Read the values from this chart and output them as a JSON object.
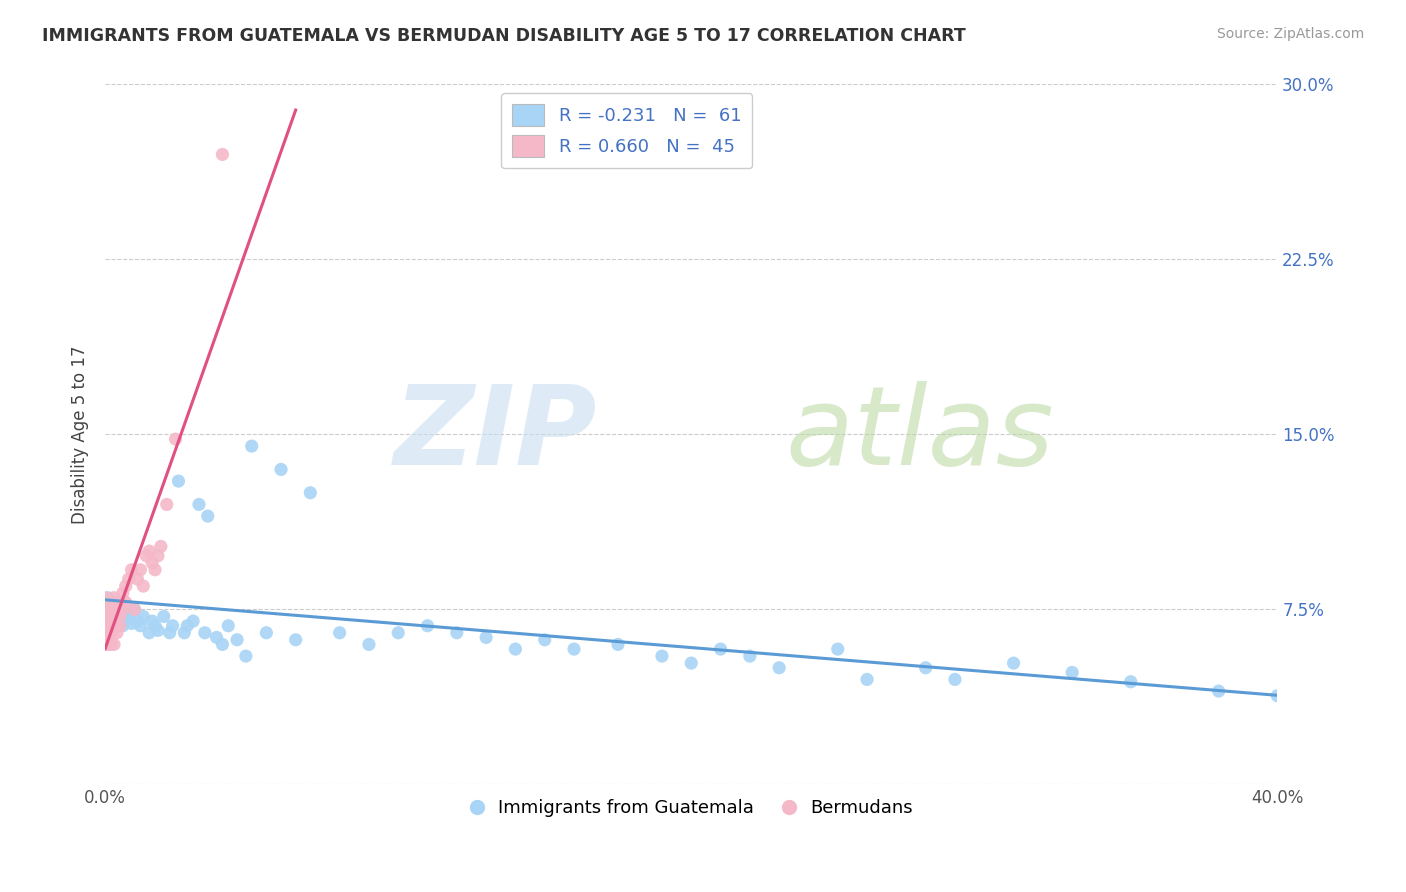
{
  "title": "IMMIGRANTS FROM GUATEMALA VS BERMUDAN DISABILITY AGE 5 TO 17 CORRELATION CHART",
  "source": "Source: ZipAtlas.com",
  "ylabel": "Disability Age 5 to 17",
  "xlim": [
    0.0,
    0.4
  ],
  "ylim": [
    0.0,
    0.3
  ],
  "xticks": [
    0.0,
    0.1,
    0.2,
    0.3,
    0.4
  ],
  "xtick_labels": [
    "0.0%",
    "",
    "",
    "",
    "40.0%"
  ],
  "yticks": [
    0.0,
    0.075,
    0.15,
    0.225,
    0.3
  ],
  "ytick_labels_right": [
    "",
    "7.5%",
    "15.0%",
    "22.5%",
    "30.0%"
  ],
  "legend_blue_r": "R = -0.231",
  "legend_blue_n": "N =  61",
  "legend_pink_r": "R = 0.660",
  "legend_pink_n": "N =  45",
  "blue_color": "#a8d4f5",
  "pink_color": "#f5b8c8",
  "blue_line_color": "#5b9bd5",
  "pink_line_color": "#e05080",
  "title_color": "#333333",
  "blue_scatter_x": [
    0.001,
    0.002,
    0.003,
    0.004,
    0.005,
    0.006,
    0.007,
    0.008,
    0.009,
    0.01,
    0.011,
    0.012,
    0.013,
    0.015,
    0.016,
    0.017,
    0.018,
    0.02,
    0.022,
    0.023,
    0.025,
    0.027,
    0.028,
    0.03,
    0.032,
    0.034,
    0.035,
    0.038,
    0.04,
    0.042,
    0.045,
    0.048,
    0.05,
    0.055,
    0.06,
    0.065,
    0.07,
    0.08,
    0.09,
    0.1,
    0.11,
    0.12,
    0.13,
    0.14,
    0.15,
    0.16,
    0.175,
    0.19,
    0.2,
    0.21,
    0.22,
    0.23,
    0.25,
    0.26,
    0.28,
    0.29,
    0.31,
    0.33,
    0.35,
    0.38,
    0.4
  ],
  "blue_scatter_y": [
    0.08,
    0.075,
    0.072,
    0.078,
    0.07,
    0.068,
    0.073,
    0.071,
    0.069,
    0.075,
    0.07,
    0.068,
    0.072,
    0.065,
    0.07,
    0.068,
    0.066,
    0.072,
    0.065,
    0.068,
    0.13,
    0.065,
    0.068,
    0.07,
    0.12,
    0.065,
    0.115,
    0.063,
    0.06,
    0.068,
    0.062,
    0.055,
    0.145,
    0.065,
    0.135,
    0.062,
    0.125,
    0.065,
    0.06,
    0.065,
    0.068,
    0.065,
    0.063,
    0.058,
    0.062,
    0.058,
    0.06,
    0.055,
    0.052,
    0.058,
    0.055,
    0.05,
    0.058,
    0.045,
    0.05,
    0.045,
    0.052,
    0.048,
    0.044,
    0.04,
    0.038
  ],
  "pink_scatter_x": [
    0.0,
    0.0,
    0.0,
    0.0,
    0.0,
    0.0,
    0.0,
    0.001,
    0.001,
    0.001,
    0.001,
    0.001,
    0.002,
    0.002,
    0.002,
    0.002,
    0.003,
    0.003,
    0.003,
    0.003,
    0.004,
    0.004,
    0.004,
    0.005,
    0.005,
    0.005,
    0.006,
    0.006,
    0.007,
    0.007,
    0.008,
    0.009,
    0.01,
    0.011,
    0.012,
    0.013,
    0.014,
    0.015,
    0.016,
    0.017,
    0.018,
    0.019,
    0.021,
    0.024,
    0.04
  ],
  "pink_scatter_y": [
    0.075,
    0.07,
    0.068,
    0.065,
    0.08,
    0.072,
    0.06,
    0.075,
    0.068,
    0.07,
    0.065,
    0.06,
    0.075,
    0.07,
    0.065,
    0.06,
    0.08,
    0.075,
    0.068,
    0.06,
    0.078,
    0.072,
    0.065,
    0.078,
    0.072,
    0.068,
    0.082,
    0.075,
    0.085,
    0.078,
    0.088,
    0.092,
    0.075,
    0.088,
    0.092,
    0.085,
    0.098,
    0.1,
    0.095,
    0.092,
    0.098,
    0.102,
    0.12,
    0.148,
    0.27
  ],
  "pink_trendline_x": [
    0.0,
    0.065
  ],
  "blue_trendline_x": [
    0.0,
    0.4
  ]
}
